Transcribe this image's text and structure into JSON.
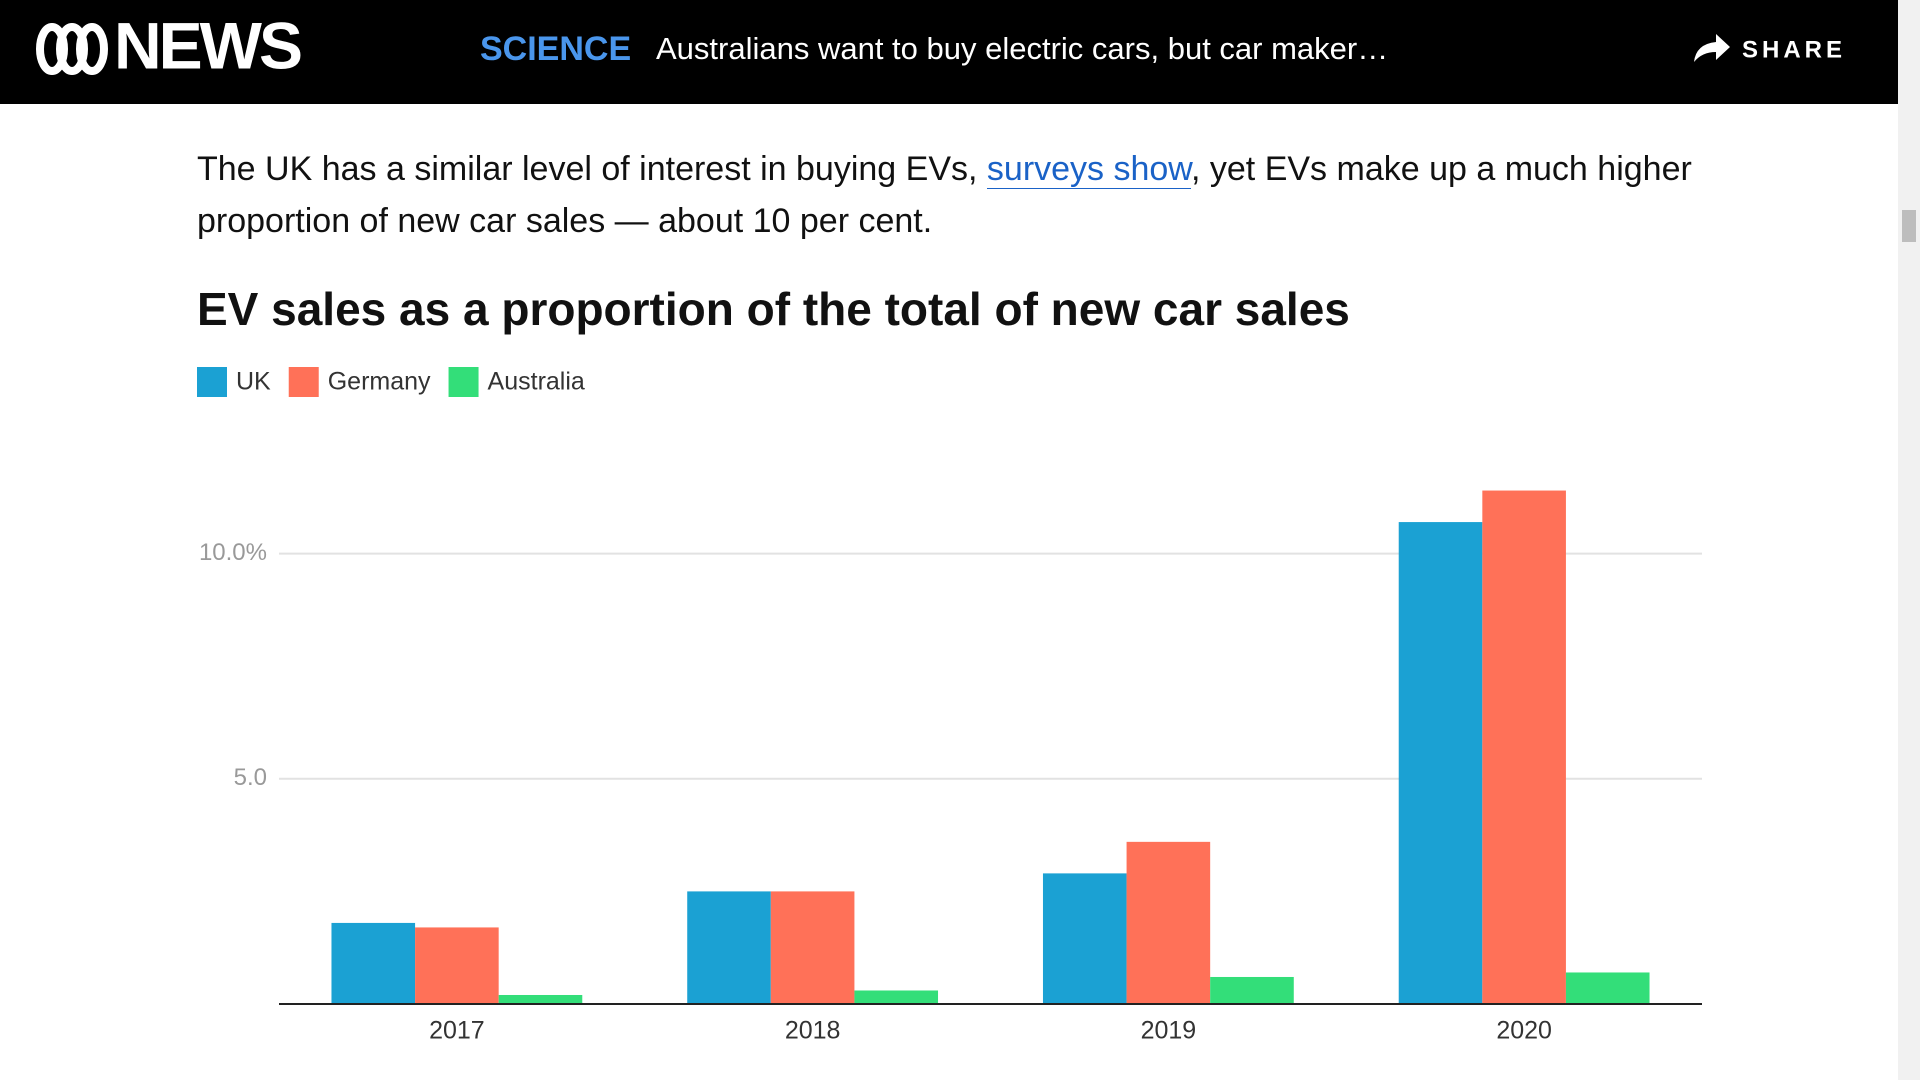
{
  "header": {
    "logo_text": "NEWS",
    "section": "SCIENCE",
    "headline": "Australians want to buy electric cars, but car maker…",
    "share": "SHARE"
  },
  "article": {
    "paragraph": [
      "The UK has a similar level of interest in buying EVs, ",
      "surveys show",
      ", yet EVs make up a much higher proportion of new car sales — about 10 per cent."
    ]
  },
  "chart_data": {
    "type": "bar",
    "title": "EV sales as a proportion of the total of new car sales",
    "categories": [
      "2017",
      "2018",
      "2019",
      "2020"
    ],
    "series": [
      {
        "name": "UK",
        "color": "#1ba1d3",
        "values": [
          1.8,
          2.5,
          2.9,
          10.7
        ]
      },
      {
        "name": "Germany",
        "color": "#ff7158",
        "values": [
          1.7,
          2.5,
          3.6,
          11.4
        ]
      },
      {
        "name": "Australia",
        "color": "#33de79",
        "values": [
          0.2,
          0.3,
          0.6,
          0.7
        ]
      }
    ],
    "ylim": [
      0,
      12.5
    ],
    "yticks": [
      {
        "value": 5,
        "label": "5.0"
      },
      {
        "value": 10,
        "label": "10.0%"
      }
    ],
    "grid": true,
    "legend": "top-left"
  }
}
